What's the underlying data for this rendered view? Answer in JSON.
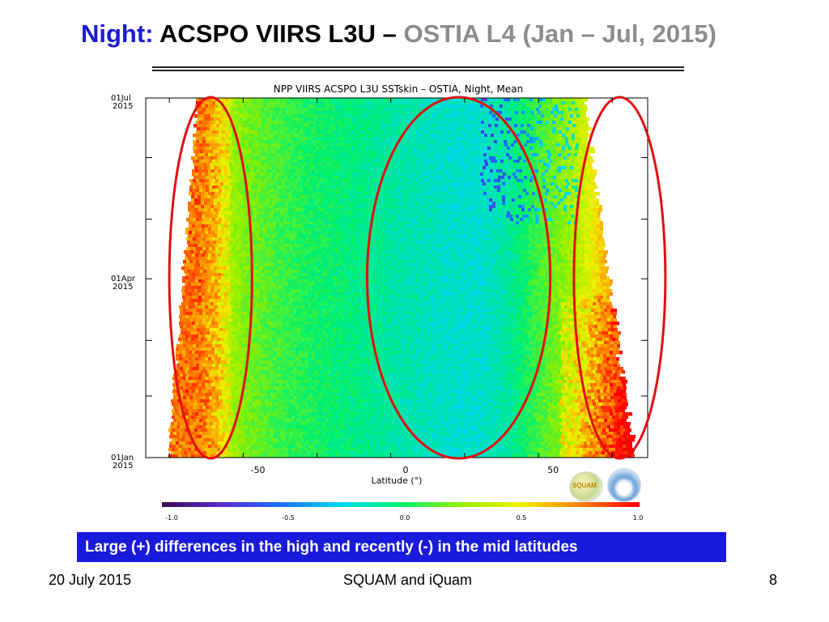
{
  "slide": {
    "title_night": "Night:",
    "title_main": " ACSPO VIIRS L3U – ",
    "title_ostia": "OSTIA L4 (Jan – Jul, 2015)",
    "callout": "Large (+) differences in the high and recently (-) in the mid latitudes",
    "footer_date": "20 July 2015",
    "footer_center": "SQUAM and iQuam",
    "page_number": "8"
  },
  "logos": {
    "squam": "SQUAM",
    "noaa": "noaa-logo-icon"
  },
  "chart_data": {
    "type": "heatmap",
    "title": "NPP VIIRS ACSPO L3U SSTskin – OSTIA, Night,   Mean",
    "xlabel": "Latitude  (°)",
    "ylabel": "",
    "xlim": [
      -88,
      82
    ],
    "x_ticks": [
      -50,
      0,
      50
    ],
    "x_tick_labels": [
      "-50",
      "0",
      "50"
    ],
    "y_ticks": [
      {
        "line1": "01Jan",
        "line2": "2015",
        "value": "2015-01-01"
      },
      {
        "line1": "01Apr",
        "line2": "2015",
        "value": "2015-04-01"
      },
      {
        "line1": "01Jul",
        "line2": "2015",
        "value": "2015-07-01"
      }
    ],
    "ylim": [
      "2015-01-01",
      "2015-07-01"
    ],
    "colorbar": {
      "min": -1.0,
      "max": 1.0,
      "ticks": [
        "-1.0",
        "-0.5",
        "0.0",
        "0.5",
        "1.0"
      ],
      "colors": [
        "#3a0a4a",
        "#5a2ad0",
        "#1a70ff",
        "#00d8f0",
        "#00f070",
        "#90f000",
        "#f0f000",
        "#ff8000",
        "#ff0000"
      ]
    },
    "profile": [
      {
        "lat": -70,
        "value": 0.65
      },
      {
        "lat": -65,
        "value": 0.5
      },
      {
        "lat": -60,
        "value": 0.3
      },
      {
        "lat": -55,
        "value": 0.22
      },
      {
        "lat": -45,
        "value": 0.12
      },
      {
        "lat": -35,
        "value": 0.05
      },
      {
        "lat": -25,
        "value": 0.0
      },
      {
        "lat": -15,
        "value": -0.05
      },
      {
        "lat": 0,
        "value": -0.12
      },
      {
        "lat": 15,
        "value": -0.18
      },
      {
        "lat": 25,
        "value": -0.18
      },
      {
        "lat": 35,
        "value": -0.08
      },
      {
        "lat": 45,
        "value": 0.12
      },
      {
        "lat": 55,
        "value": 0.28
      },
      {
        "lat": 65,
        "value": 0.55
      },
      {
        "lat": 75,
        "value": 0.85
      }
    ],
    "highlighted_regions": [
      {
        "lat_min": -80,
        "lat_max": -52
      },
      {
        "lat_min": -13,
        "lat_max": 49
      },
      {
        "lat_min": 57,
        "lat_max": 88
      }
    ],
    "grid": false,
    "legend": "bottom"
  }
}
